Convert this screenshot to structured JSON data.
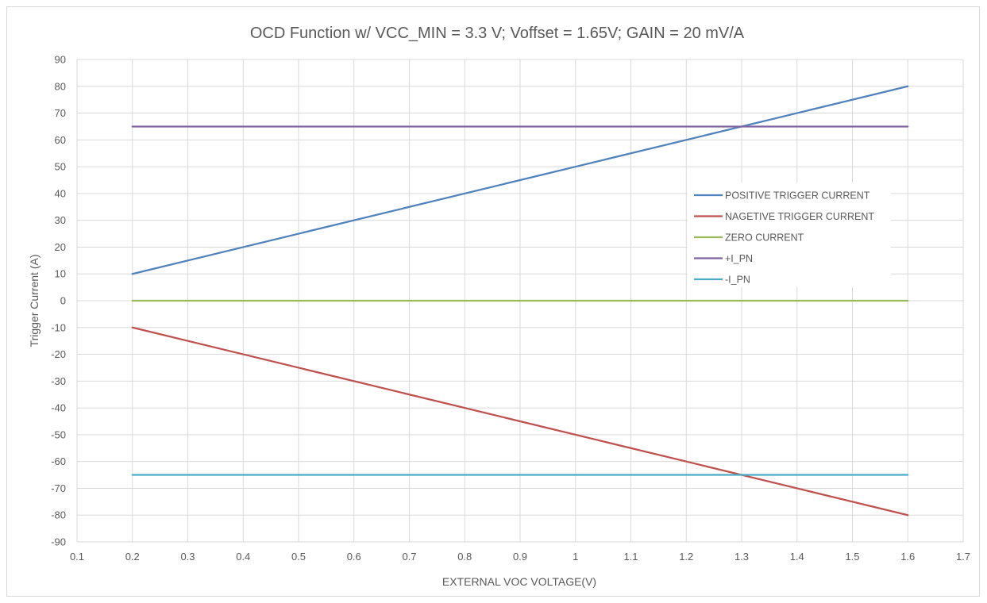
{
  "chart_data": {
    "type": "line",
    "title": "OCD Function w/ VCC_MIN = 3.3 V; Voffset = 1.65V; GAIN = 20 mV/A",
    "xlabel": "EXTERNAL VOC VOLTAGE(V)",
    "ylabel": "Trigger Current (A)",
    "xlim": [
      0.1,
      1.7
    ],
    "ylim": [
      -90,
      90
    ],
    "xticks": [
      "0.1",
      "0.2",
      "0.3",
      "0.4",
      "0.5",
      "0.6",
      "0.7",
      "0.8",
      "0.9",
      "1",
      "1.1",
      "1.2",
      "1.3",
      "1.4",
      "1.5",
      "1.6",
      "1.7"
    ],
    "yticks": [
      "90",
      "80",
      "70",
      "60",
      "50",
      "40",
      "30",
      "20",
      "10",
      "0",
      "-10",
      "-20",
      "-30",
      "-40",
      "-50",
      "-60",
      "-70",
      "-80",
      "-90"
    ],
    "grid": true,
    "legend_position": "right-center",
    "series": [
      {
        "name": "POSITIVE TRIGGER CURRENT",
        "color": "#4f81bd",
        "x": [
          0.2,
          1.6
        ],
        "y": [
          10,
          80
        ]
      },
      {
        "name": "NAGETIVE TRIGGER CURRENT",
        "color": "#c0504d",
        "x": [
          0.2,
          1.6
        ],
        "y": [
          -10,
          -80
        ]
      },
      {
        "name": "ZERO CURRENT",
        "color": "#9bbb59",
        "x": [
          0.2,
          1.6
        ],
        "y": [
          0,
          0
        ]
      },
      {
        "name": "+I_PN",
        "color": "#8064a2",
        "x": [
          0.2,
          1.6
        ],
        "y": [
          65,
          65
        ]
      },
      {
        "name": "-I_PN",
        "color": "#4bacc6",
        "x": [
          0.2,
          1.6
        ],
        "y": [
          -65,
          -65
        ]
      }
    ]
  }
}
